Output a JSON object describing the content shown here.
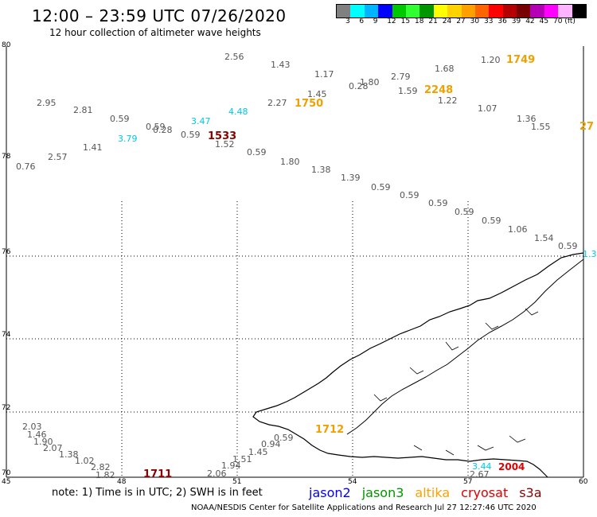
{
  "header": {
    "title": "12:00 – 23:59 UTC 07/26/2020",
    "subtitle": "12 hour collection of altimeter wave heights"
  },
  "colorscale": {
    "colors": [
      "#808080",
      "#00ffff",
      "#00b4ff",
      "#0000ff",
      "#00c800",
      "#32ff32",
      "#009600",
      "#ffff00",
      "#ffd200",
      "#ffa000",
      "#ff6400",
      "#ff0000",
      "#b40000",
      "#780000",
      "#b400b4",
      "#ff00ff",
      "#ffb4ff",
      "#000000"
    ],
    "labels": [
      "3",
      "6",
      "9",
      "12",
      "15",
      "18",
      "21",
      "24",
      "27",
      "30",
      "33",
      "36",
      "39",
      "42",
      "45",
      "70 (ft)"
    ]
  },
  "axes": {
    "lat_labels": [
      "80",
      "78",
      "76",
      "74",
      "72",
      "70"
    ],
    "lon_labels": [
      "45",
      "48",
      "51",
      "54",
      "57",
      "60"
    ]
  },
  "observations": {
    "gray": [
      "2.56",
      "1.43",
      "1.17",
      "1.80",
      "0.28",
      "2.79",
      "1.68",
      "1.20",
      "2.95",
      "2.81",
      "0.59",
      "0.59",
      "0.28",
      "0.59",
      "1.52",
      "1.45",
      "1.59",
      "1.22",
      "2.27",
      "1.07",
      "1.36",
      "1.55",
      "0.76",
      "2.57",
      "1.41",
      "0.59",
      "1.80",
      "1.38",
      "1.39",
      "0.59",
      "0.59",
      "0.59",
      "0.59",
      "0.59",
      "1.06",
      "1.54",
      "0.59",
      "2.03",
      "1.46",
      "1.90",
      "2.07",
      "1.38",
      "1.02",
      "2.82",
      "1.82",
      "2.06",
      "1.94",
      "1.51",
      "1.45",
      "0.94",
      "0.59",
      "2.67"
    ],
    "cyan": [
      "3.79",
      "3.47",
      "4.48",
      "3.44",
      "1.3"
    ],
    "orange": [
      "1749",
      "2248",
      "1750",
      "1712",
      "27"
    ],
    "darkred": [
      "1533",
      "1711"
    ],
    "red": [
      "2004"
    ]
  },
  "footer": {
    "note": "note: 1) Time is in UTC; 2) SWH is in feet",
    "legend": [
      {
        "label": "jason2",
        "color": "#0000ff"
      },
      {
        "label": "jason3",
        "color": "#009600"
      },
      {
        "label": "altika",
        "color": "#ffa000"
      },
      {
        "label": "cryosat",
        "color": "#e00000"
      },
      {
        "label": "s3a",
        "color": "#8b0000"
      }
    ],
    "credits": "NOAA/NESDIS Center for Satellite Applications and Research    Jul 27 12:27:46 UTC 2020"
  }
}
